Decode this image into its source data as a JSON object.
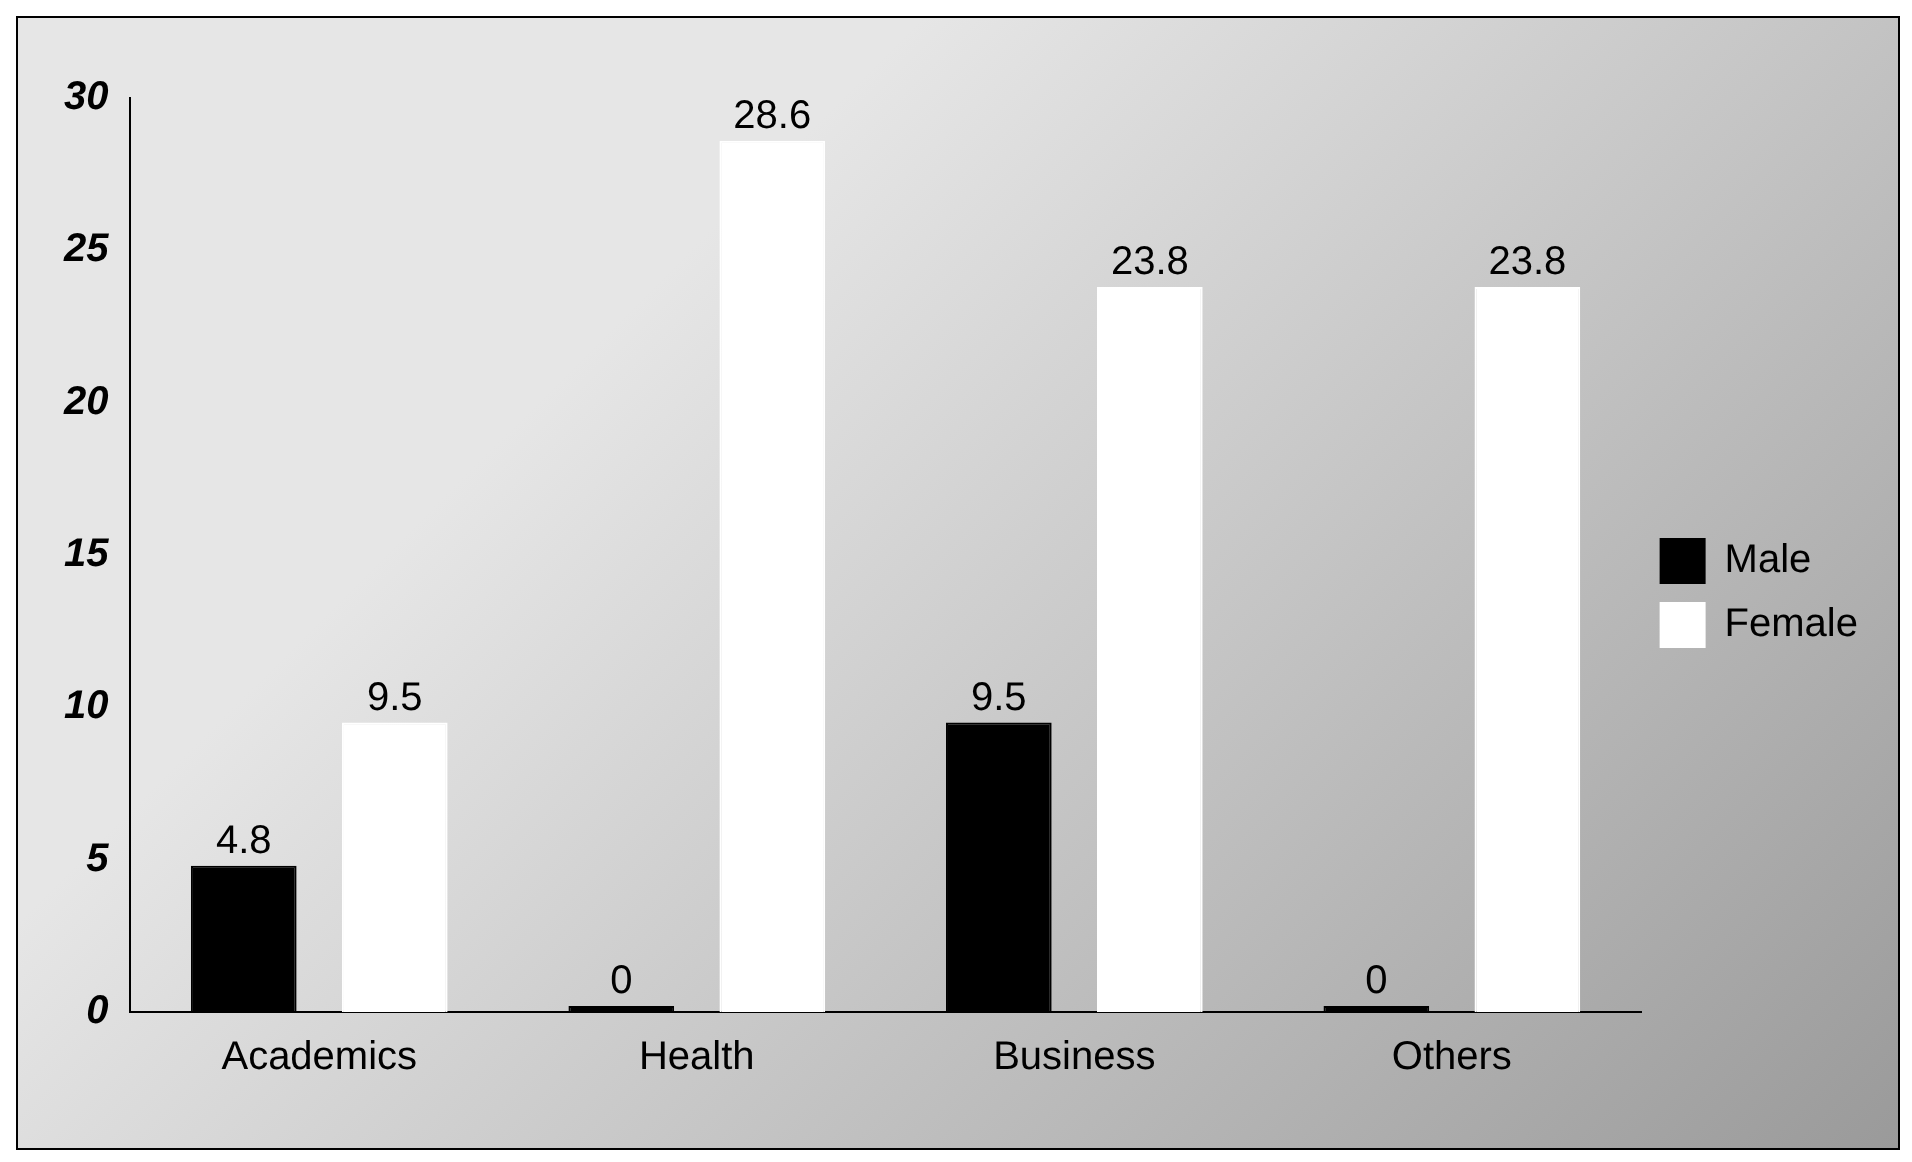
{
  "chart_data": {
    "type": "bar",
    "categories": [
      "Academics",
      "Health",
      "Business",
      "Others"
    ],
    "series": [
      {
        "name": "Male",
        "color": "#000000",
        "values": [
          4.8,
          0,
          9.5,
          0
        ]
      },
      {
        "name": "Female",
        "color": "#ffffff",
        "values": [
          9.5,
          28.6,
          23.8,
          23.8
        ]
      }
    ],
    "ylim": [
      0,
      30
    ],
    "yticks": [
      0,
      5,
      10,
      15,
      20,
      25,
      30
    ],
    "grid": false,
    "legend": "right",
    "data_labels": true
  }
}
